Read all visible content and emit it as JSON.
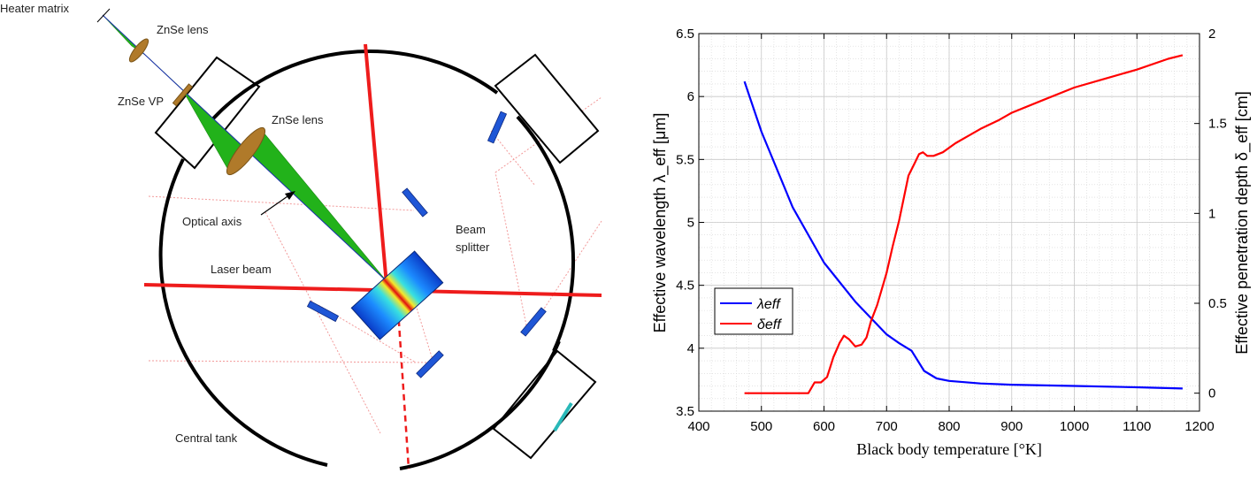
{
  "diagram": {
    "labels": {
      "heater_matrix": "Heater matrix",
      "znse_lens_top": "ZnSe lens",
      "znse_vp": "ZnSe VP",
      "znse_lens_mid": "ZnSe lens",
      "optical_axis": "Optical axis",
      "laser_beam": "Laser beam",
      "beam_splitter_1": "Beam",
      "beam_splitter_2": "splitter",
      "central_tank": "Central tank"
    },
    "colors": {
      "green_beam": "#22b21a",
      "laser": "#ee1c1c",
      "mirror": "#1f56d6",
      "lens": "#b07a2a",
      "tank": "#000000",
      "dotted": "#f29a9a"
    }
  },
  "chart_data": {
    "type": "line",
    "xlabel": "Black body temperature [°K]",
    "ylabel_left": "Effective wavelength λ_eff [μm]",
    "ylabel_right": "Effective penetration depth δ_eff [cm]",
    "xlim": [
      400,
      1200
    ],
    "ylim_left": [
      3.5,
      6.5
    ],
    "ylim_right": [
      -0.1,
      2
    ],
    "x_ticks": [
      "400",
      "500",
      "600",
      "700",
      "800",
      "900",
      "1000",
      "1100",
      "1200"
    ],
    "y_left_ticks": [
      "3.5",
      "4",
      "4.5",
      "5",
      "5.5",
      "6",
      "6.5"
    ],
    "y_right_ticks": [
      "0",
      "0.5",
      "1",
      "1.5",
      "2"
    ],
    "grid": true,
    "legend_position": "center-left",
    "series": [
      {
        "name": "λeff",
        "axis": "left",
        "color": "#0000ff",
        "x": [
          473,
          500,
          550,
          600,
          650,
          700,
          720,
          740,
          760,
          780,
          800,
          850,
          900,
          1000,
          1100,
          1173
        ],
        "values": [
          6.12,
          5.72,
          5.12,
          4.68,
          4.37,
          4.11,
          4.04,
          3.98,
          3.82,
          3.76,
          3.74,
          3.72,
          3.71,
          3.7,
          3.69,
          3.68
        ]
      },
      {
        "name": "δeff",
        "axis": "right",
        "color": "#ff0000",
        "x": [
          473,
          500,
          550,
          575,
          585,
          595,
          605,
          615,
          625,
          632,
          640,
          650,
          660,
          668,
          675,
          685,
          700,
          710,
          720,
          735,
          745,
          752,
          758,
          765,
          775,
          790,
          810,
          830,
          850,
          880,
          900,
          950,
          1000,
          1050,
          1100,
          1150,
          1173
        ],
        "values": [
          0.0,
          0.0,
          0.0,
          0.0,
          0.06,
          0.06,
          0.09,
          0.2,
          0.28,
          0.32,
          0.3,
          0.26,
          0.27,
          0.31,
          0.4,
          0.49,
          0.67,
          0.82,
          0.96,
          1.21,
          1.28,
          1.33,
          1.34,
          1.32,
          1.32,
          1.34,
          1.39,
          1.43,
          1.47,
          1.52,
          1.56,
          1.63,
          1.7,
          1.75,
          1.8,
          1.86,
          1.88
        ]
      }
    ]
  }
}
